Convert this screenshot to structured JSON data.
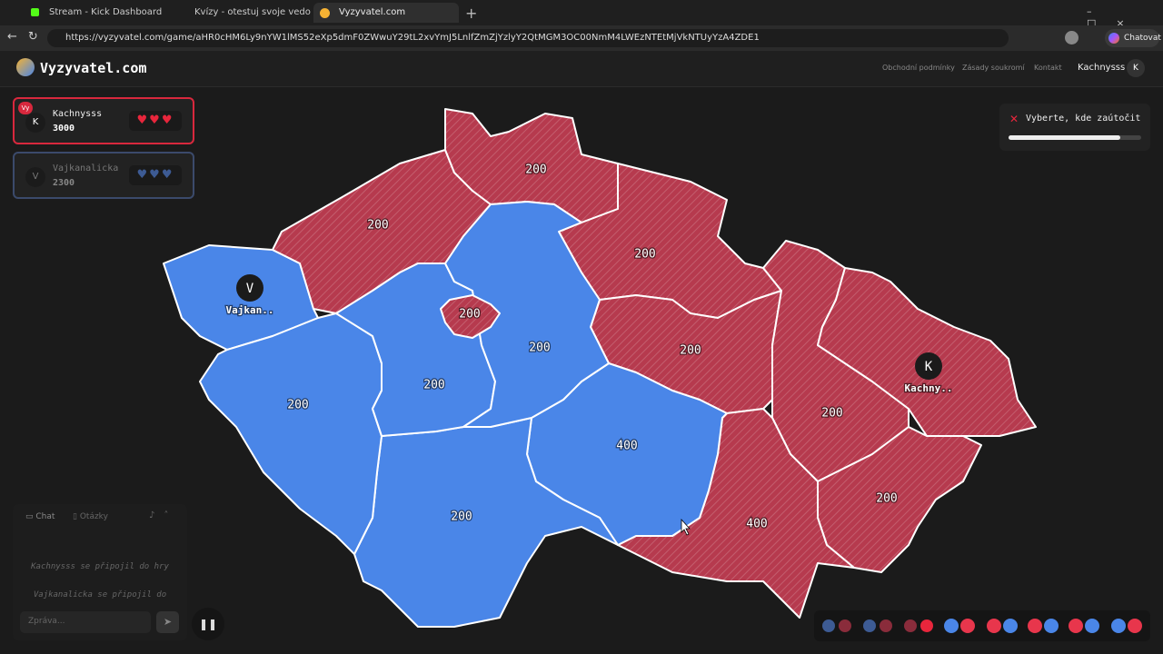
{
  "browser": {
    "tabs": [
      "Stream - Kick Dashboard",
      "Kvízy - otestuj svoje vedomosti! -",
      "Vyzyvatel.com"
    ],
    "url": "https://vyzyvatel.com/game/aHR0cHM6Ly9nYW1lMS52eXp5dmF0ZWwuY29tL2xvYmJ5LnlfZmZjYzlyY2QtMGM3OC00NmM4LWEzNTEtMjVkNTUyYzA4ZDE1",
    "chat_button": "Chatovat"
  },
  "header": {
    "logo": "Vyzyvatel.com",
    "nav": [
      "Obchodní podmínky",
      "Zásady soukromí",
      "Kontakt"
    ],
    "user": "Kachnysss",
    "user_initial": "K"
  },
  "players": [
    {
      "badge": "Vy",
      "initial": "K",
      "name": "Kachnysss",
      "score": 3000
    },
    {
      "initial": "V",
      "name": "Vajkanalicka",
      "score": 2300
    }
  ],
  "prompt": {
    "text": "Vyberte, kde zaútočit"
  },
  "map": {
    "regions": [
      {
        "color": "#4a86e8",
        "hatched": false,
        "base": {
          "initial": "V",
          "label": "Vajkan.."
        }
      },
      {
        "color": "#b63a4e",
        "hatched": true,
        "value": 200
      },
      {
        "color": "#b63a4e",
        "hatched": true,
        "value": 200
      },
      {
        "color": "#b63a4e",
        "hatched": true,
        "value": 200
      },
      {
        "color": "#b63a4e",
        "hatched": true,
        "value": 200
      },
      {
        "color": "#b63a4e",
        "hatched": true,
        "value": 200
      },
      {
        "color": "#b63a4e",
        "hatched": true,
        "base": {
          "initial": "K",
          "label": "Kachny.."
        }
      },
      {
        "color": "#b63a4e",
        "hatched": true,
        "value": 200
      },
      {
        "color": "#b63a4e",
        "hatched": true,
        "value": 400
      },
      {
        "color": "#4a86e8",
        "hatched": false,
        "value": 400
      },
      {
        "color": "#4a86e8",
        "hatched": false,
        "value": 200
      },
      {
        "color": "#4a86e8",
        "hatched": false,
        "value": 200
      },
      {
        "color": "#4a86e8",
        "hatched": false,
        "value": 200
      },
      {
        "color": "#4a86e8",
        "hatched": false,
        "value": 200
      },
      {
        "color": "#b63a4e",
        "hatched": true,
        "value": 200
      }
    ]
  },
  "chat": {
    "tabs": [
      "Chat",
      "Otázky"
    ],
    "messages": [
      "Kachnysss se připojil do hry",
      "Vajkanalicka se připojil do"
    ],
    "placeholder": "Zpráva..."
  }
}
